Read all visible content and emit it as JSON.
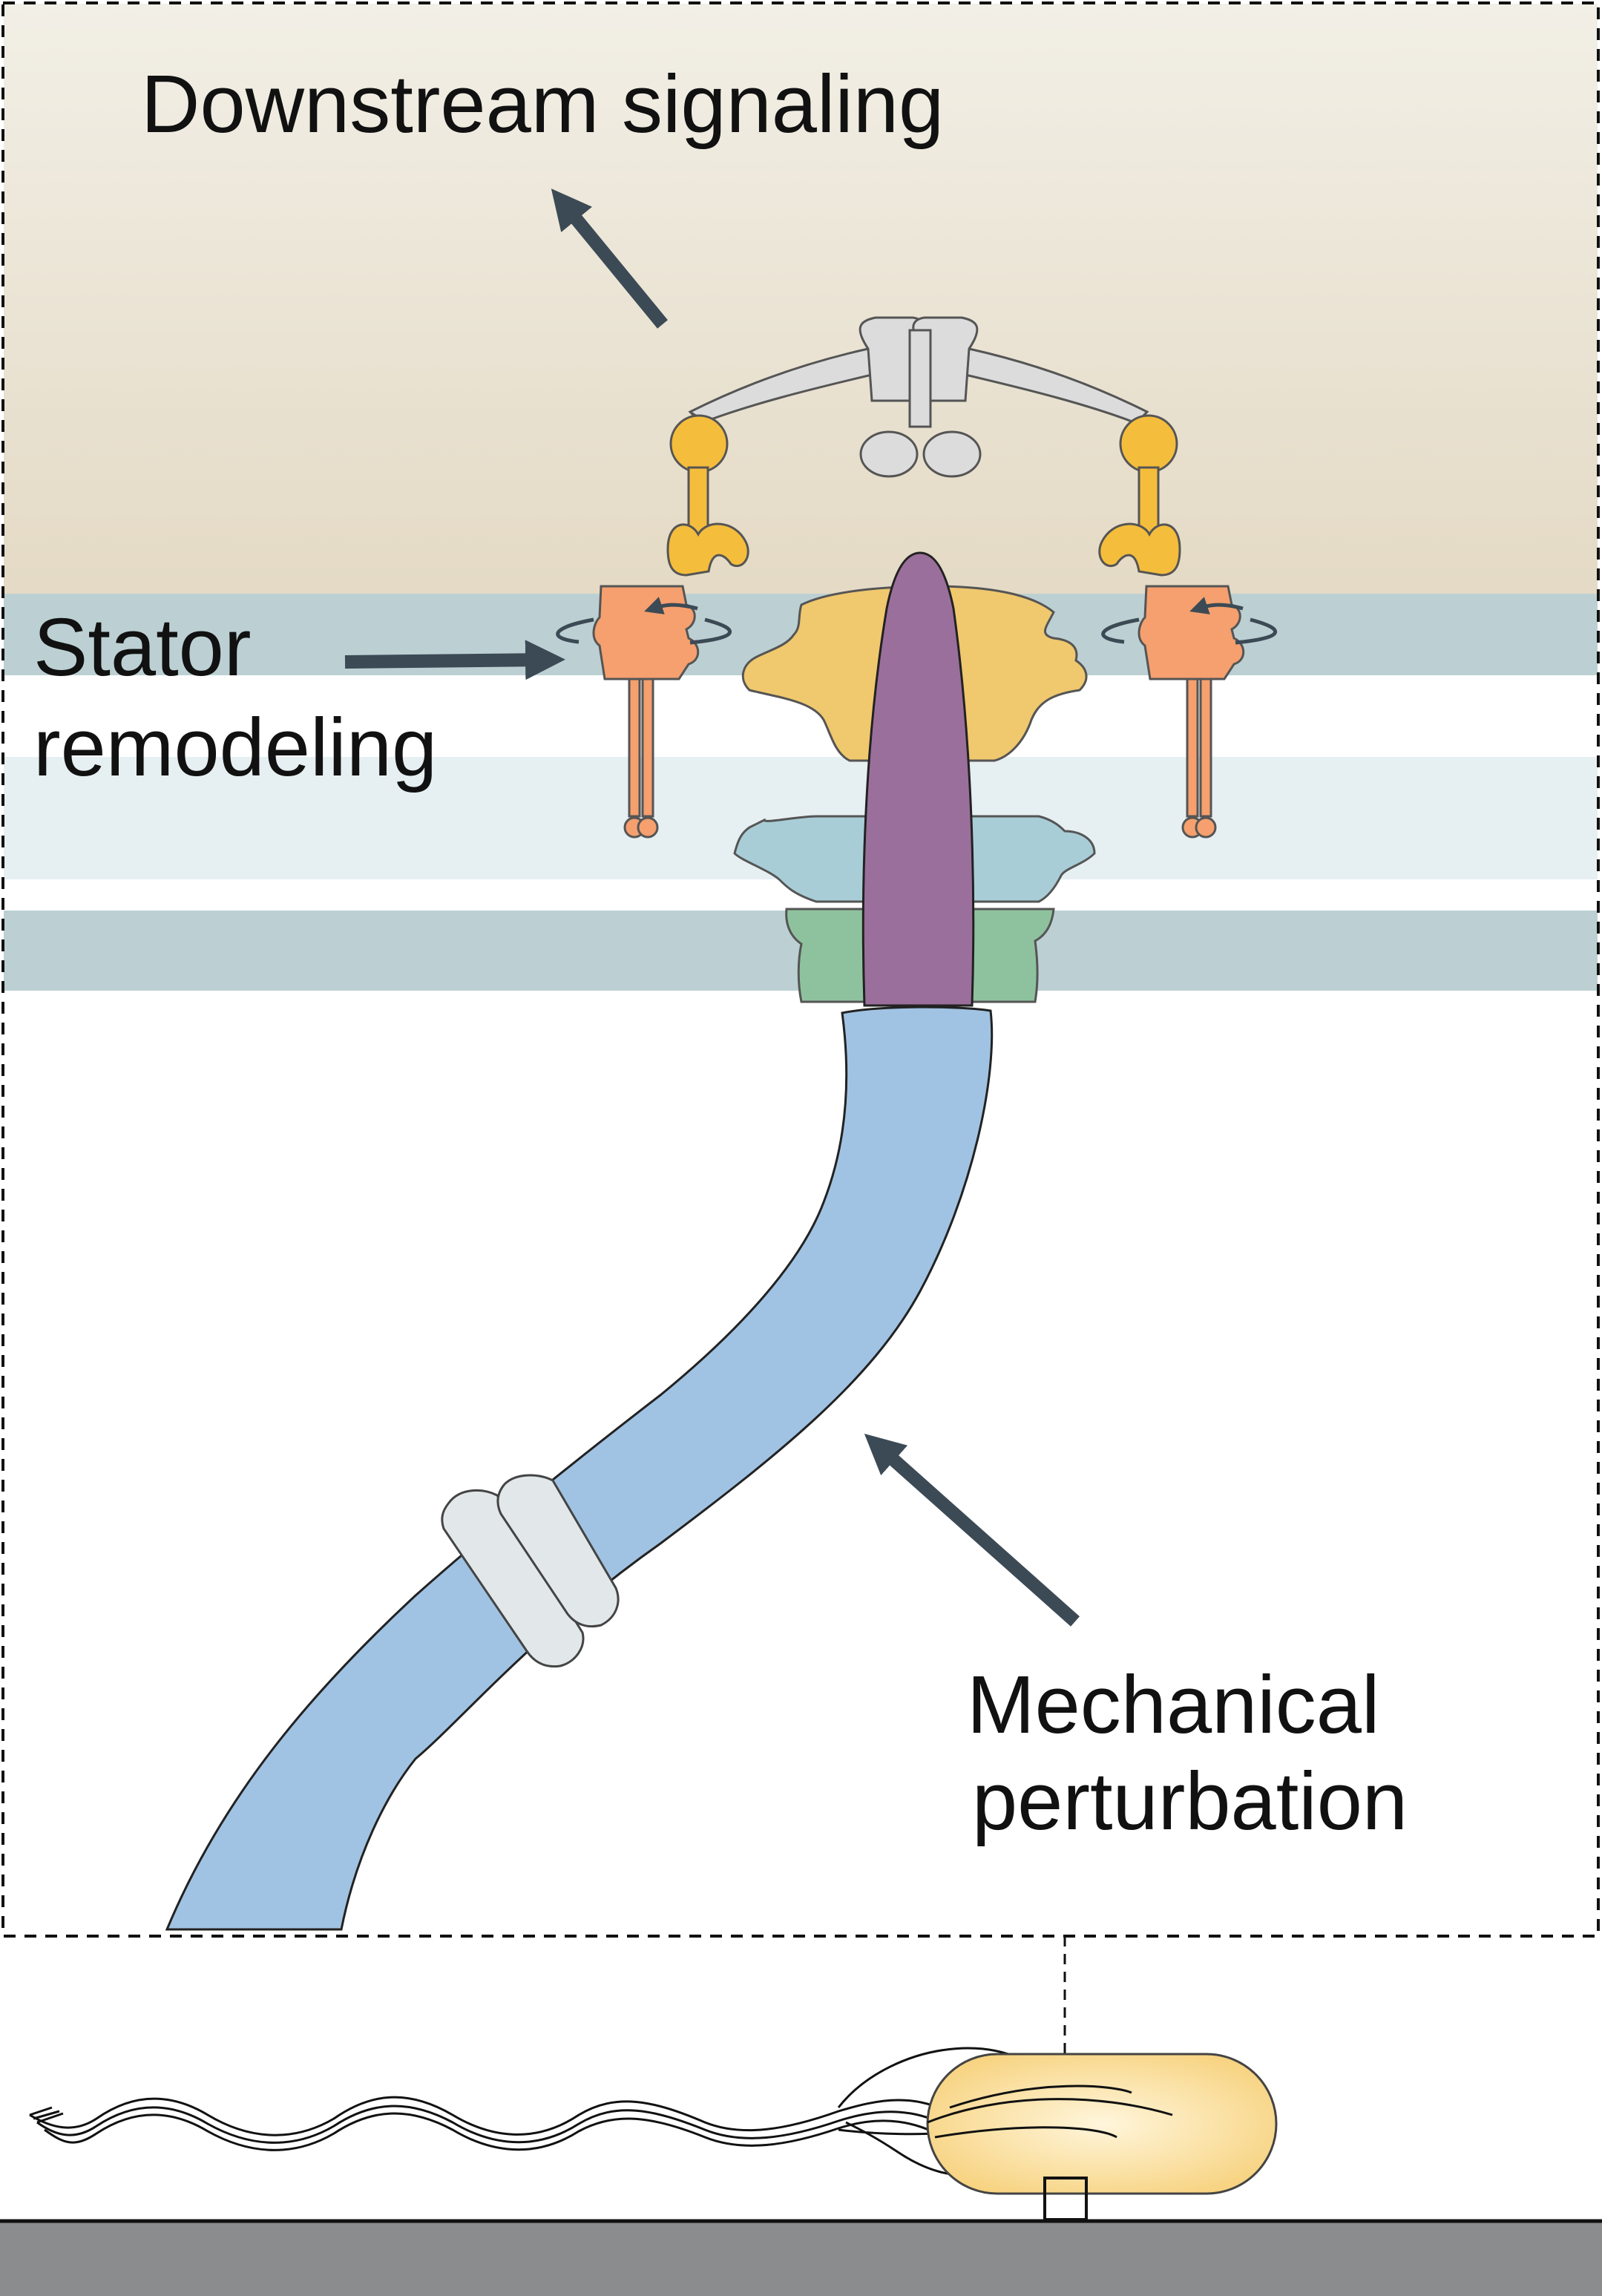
{
  "labels": {
    "downstream": "Downstream signaling",
    "stator_line1": "Stator",
    "stator_line2": "remodeling",
    "mechanical_line1": "Mechanical",
    "mechanical_line2": "perturbation"
  },
  "colors": {
    "cytoplasm_top": "#f2efe6",
    "cytoplasm_bottom": "#e4dac5",
    "membrane_dark": "#bcd0d3",
    "periplasm_light": "#e6eff1",
    "arrow": "#3c4a55",
    "stator": "#f5a06e",
    "c_ring": "#f0c86e",
    "y_protein": "#f5bd3c",
    "rod": "#9b6f9b",
    "p_ring": "#a8cdd6",
    "l_ring": "#8ec29e",
    "hook_filament": "#a1c3e3",
    "junction": "#e2e8ea",
    "signal_protein": "#dcdcdc",
    "cell_body": "#f7d27e",
    "surface": "#8a8c8e"
  }
}
